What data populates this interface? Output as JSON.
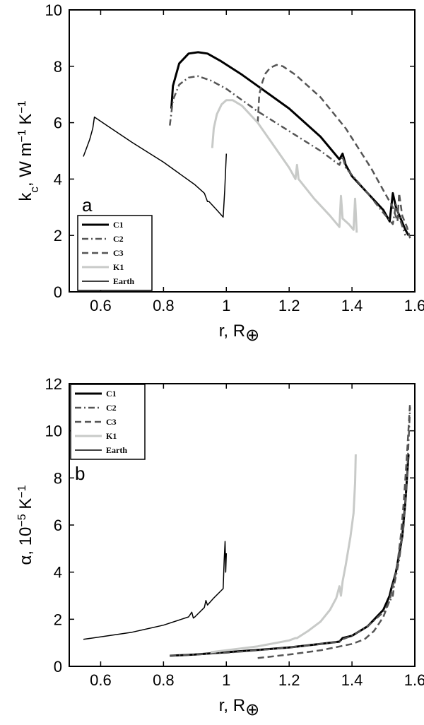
{
  "chart_data": [
    {
      "type": "line",
      "panel_label": "a",
      "xlabel": "r, R⊕",
      "ylabel": "kc, W m⁻¹ K⁻¹",
      "xlim": [
        0.5,
        1.6
      ],
      "ylim": [
        0,
        10
      ],
      "xticks": [
        "0.6",
        "0.8",
        "1",
        "1.2",
        "1.4",
        "1.6"
      ],
      "yticks": [
        "0",
        "2",
        "4",
        "6",
        "8",
        "10"
      ],
      "legend_placement": "bottom-left",
      "series": [
        {
          "name": "C1",
          "color": "#000000",
          "style": "solid",
          "width": 3,
          "x": [
            0.825,
            0.83,
            0.85,
            0.88,
            0.91,
            0.94,
            0.98,
            1.05,
            1.1,
            1.2,
            1.3,
            1.36,
            1.37,
            1.38,
            1.4,
            1.45,
            1.5,
            1.52,
            1.53,
            1.54,
            1.555,
            1.57,
            1.58
          ],
          "y": [
            6.5,
            7.3,
            8.1,
            8.45,
            8.5,
            8.45,
            8.2,
            7.7,
            7.3,
            6.5,
            5.5,
            4.7,
            4.9,
            4.5,
            4.1,
            3.5,
            2.9,
            2.5,
            3.5,
            3.0,
            2.6,
            2.2,
            2.0
          ]
        },
        {
          "name": "C2",
          "color": "#555555",
          "style": "dashdot",
          "width": 2.5,
          "x": [
            0.82,
            0.83,
            0.85,
            0.88,
            0.91,
            0.95,
            1.0,
            1.05,
            1.1,
            1.2,
            1.3,
            1.36,
            1.37,
            1.38,
            1.45,
            1.5,
            1.53,
            1.54,
            1.555,
            1.57
          ],
          "y": [
            5.9,
            6.8,
            7.35,
            7.6,
            7.65,
            7.5,
            7.2,
            6.8,
            6.4,
            5.7,
            5.0,
            4.5,
            4.8,
            4.4,
            3.5,
            2.8,
            2.4,
            3.1,
            2.5,
            2.0
          ]
        },
        {
          "name": "C3",
          "color": "#555555",
          "style": "dashed",
          "width": 2.5,
          "x": [
            1.1,
            1.105,
            1.115,
            1.125,
            1.14,
            1.16,
            1.18,
            1.22,
            1.3,
            1.38,
            1.42,
            1.46,
            1.5,
            1.53,
            1.545,
            1.55,
            1.56,
            1.575,
            1.585
          ],
          "y": [
            6.0,
            7.0,
            7.45,
            7.75,
            7.95,
            8.05,
            8.0,
            7.7,
            6.9,
            5.8,
            5.1,
            4.4,
            3.6,
            3.0,
            2.5,
            3.5,
            2.7,
            2.3,
            1.9
          ]
        },
        {
          "name": "K1",
          "color": "#c8cac8",
          "style": "solid",
          "width": 3,
          "x": [
            0.955,
            0.96,
            0.97,
            0.985,
            1.0,
            1.02,
            1.05,
            1.1,
            1.15,
            1.2,
            1.22,
            1.225,
            1.23,
            1.28,
            1.33,
            1.36,
            1.365,
            1.37,
            1.39,
            1.405,
            1.41,
            1.415
          ],
          "y": [
            5.1,
            5.8,
            6.3,
            6.65,
            6.8,
            6.8,
            6.6,
            6.0,
            5.2,
            4.4,
            4.0,
            4.5,
            4.0,
            3.3,
            2.7,
            2.3,
            3.4,
            2.6,
            2.4,
            2.2,
            3.3,
            2.1
          ]
        },
        {
          "name": "Earth",
          "color": "#000000",
          "style": "solid",
          "width": 1.5,
          "x": [
            0.545,
            0.555,
            0.565,
            0.575,
            0.58,
            0.62,
            0.7,
            0.8,
            0.9,
            0.93,
            0.94,
            0.945,
            0.97,
            0.99,
            0.995,
            0.998,
            1.0
          ],
          "y": [
            4.8,
            5.1,
            5.4,
            5.8,
            6.2,
            5.9,
            5.3,
            4.6,
            3.8,
            3.5,
            3.2,
            3.2,
            2.9,
            2.65,
            3.6,
            4.4,
            4.9
          ]
        }
      ]
    },
    {
      "type": "line",
      "panel_label": "b",
      "xlabel": "r, R⊕",
      "ylabel": "α, 10⁻⁵ K⁻¹",
      "xlim": [
        0.5,
        1.6
      ],
      "ylim": [
        0,
        12
      ],
      "xticks": [
        "0.6",
        "0.8",
        "1",
        "1.2",
        "1.4",
        "1.6"
      ],
      "yticks": [
        "0",
        "2",
        "4",
        "6",
        "8",
        "10",
        "12"
      ],
      "legend_placement": "top-left",
      "series": [
        {
          "name": "C1",
          "color": "#000000",
          "style": "solid",
          "width": 3,
          "x": [
            0.82,
            0.9,
            1.0,
            1.1,
            1.2,
            1.3,
            1.36,
            1.37,
            1.4,
            1.45,
            1.5,
            1.52,
            1.525,
            1.54,
            1.56,
            1.57,
            1.575,
            1.58
          ],
          "y": [
            0.45,
            0.5,
            0.6,
            0.7,
            0.8,
            0.95,
            1.05,
            1.2,
            1.3,
            1.7,
            2.4,
            3.0,
            3.3,
            4.0,
            5.5,
            7.0,
            8.0,
            9.0
          ]
        },
        {
          "name": "C2",
          "color": "#555555",
          "style": "dashdot",
          "width": 2.5,
          "x": [
            0.82,
            0.9,
            1.0,
            1.1,
            1.2,
            1.3,
            1.36,
            1.37,
            1.4,
            1.45,
            1.5,
            1.53,
            1.535,
            1.55,
            1.565,
            1.575,
            1.58,
            1.585
          ],
          "y": [
            0.45,
            0.5,
            0.58,
            0.68,
            0.8,
            0.95,
            1.05,
            1.15,
            1.3,
            1.7,
            2.3,
            3.0,
            3.5,
            4.5,
            6.0,
            8.0,
            9.5,
            11.0
          ]
        },
        {
          "name": "C3",
          "color": "#555555",
          "style": "dashed",
          "width": 2.5,
          "x": [
            1.1,
            1.2,
            1.3,
            1.4,
            1.43,
            1.44,
            1.47,
            1.5,
            1.52,
            1.54,
            1.545,
            1.555,
            1.565,
            1.575,
            1.585
          ],
          "y": [
            0.35,
            0.5,
            0.68,
            0.95,
            1.1,
            1.15,
            1.5,
            2.1,
            2.8,
            4.0,
            4.4,
            5.5,
            7.0,
            9.0,
            11.2
          ]
        },
        {
          "name": "K1",
          "color": "#c8cac8",
          "style": "solid",
          "width": 3,
          "x": [
            0.95,
            1.0,
            1.1,
            1.2,
            1.22,
            1.225,
            1.26,
            1.3,
            1.33,
            1.35,
            1.36,
            1.365,
            1.37,
            1.38,
            1.395,
            1.405,
            1.41,
            1.412
          ],
          "y": [
            0.6,
            0.68,
            0.85,
            1.1,
            1.2,
            1.2,
            1.5,
            1.9,
            2.4,
            2.9,
            3.4,
            3.0,
            3.6,
            4.3,
            5.5,
            6.5,
            7.8,
            9.0
          ]
        },
        {
          "name": "Earth",
          "color": "#000000",
          "style": "solid",
          "width": 1.5,
          "x": [
            0.545,
            0.6,
            0.7,
            0.8,
            0.88,
            0.89,
            0.895,
            0.9,
            0.93,
            0.935,
            0.94,
            0.96,
            0.99,
            0.993,
            0.996,
            0.998,
            1.0
          ],
          "y": [
            1.15,
            1.25,
            1.45,
            1.75,
            2.1,
            2.3,
            2.05,
            2.1,
            2.5,
            2.8,
            2.6,
            2.9,
            3.3,
            4.5,
            5.3,
            4.0,
            4.8
          ]
        }
      ]
    }
  ]
}
